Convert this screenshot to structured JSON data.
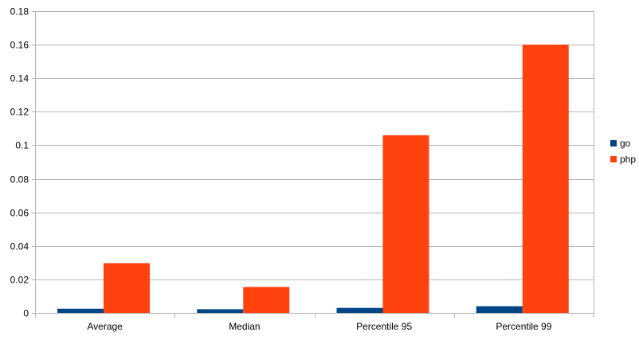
{
  "chart_data": {
    "type": "bar",
    "title": "",
    "xlabel": "",
    "ylabel": "",
    "categories": [
      "Average",
      "Median",
      "Percentile 95",
      "Percentile 99"
    ],
    "series": [
      {
        "name": "go",
        "values": [
          0.0025,
          0.0022,
          0.003,
          0.004
        ]
      },
      {
        "name": "php",
        "values": [
          0.0297,
          0.0155,
          0.106,
          0.16
        ]
      }
    ],
    "ylim": [
      0,
      0.18
    ],
    "yticks": [
      0,
      0.02,
      0.04,
      0.06,
      0.08,
      0.1,
      0.12,
      0.14,
      0.16,
      0.18
    ],
    "ytick_labels": [
      "0",
      "0.02",
      "0.04",
      "0.06",
      "0.08",
      "0.1",
      "0.12",
      "0.14",
      "0.16",
      "0.18"
    ],
    "grid": true,
    "legend": "right",
    "colors": {
      "go": "#004586",
      "php": "#ff420e",
      "grid": "#b3b3b3",
      "axis": "#b3b3b3"
    }
  }
}
